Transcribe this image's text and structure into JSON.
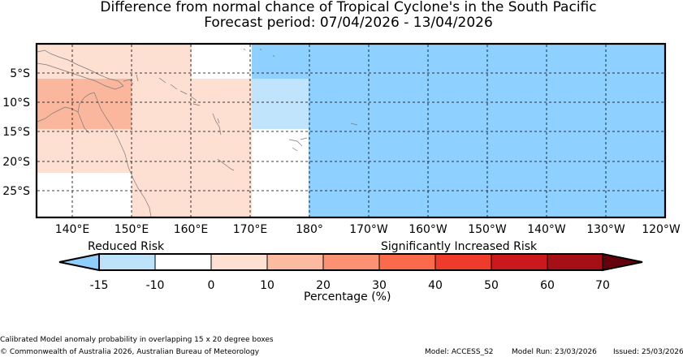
{
  "title_line1": "Difference from normal chance of Tropical Cyclone's in the South Pacific",
  "title_line2": "Forecast period: 07/04/2026 - 13/04/2026",
  "map": {
    "lon_ticks": [
      "140°E",
      "150°E",
      "160°E",
      "170°E",
      "180°",
      "170°W",
      "160°W",
      "150°W",
      "140°W",
      "130°W",
      "120°W"
    ],
    "lat_ticks": [
      "5°S",
      "10°S",
      "15°S",
      "20°S",
      "25°S"
    ],
    "lon_range_deg_east": [
      135,
      240
    ],
    "lat_range_deg": [
      -29.5,
      0
    ]
  },
  "colorbar": {
    "label_left": "Reduced Risk",
    "label_right": "Significantly Increased Risk",
    "tick_labels": [
      "-15",
      "-10",
      "0",
      "10",
      "20",
      "30",
      "40",
      "50",
      "60",
      "70"
    ],
    "colors": [
      "#8ecfff",
      "#bde3fb",
      "#ffffff",
      "#fee0d2",
      "#fcbba1",
      "#fc9272",
      "#fb6a4a",
      "#ef3b2c",
      "#cb181d",
      "#a50f15",
      "#67000d"
    ],
    "axis_label": "Percentage (%)"
  },
  "footer": {
    "method": "Calibrated Model anomaly probability in overlapping 15 x 20 degree boxes",
    "copyright": "© Commonwealth of Australia 2026, Australian Bureau of Meteorology",
    "model": "Model: ACCESS_S2",
    "model_run": "Model Run: 23/03/2026",
    "issued": "Issued: 25/03/2026"
  }
}
